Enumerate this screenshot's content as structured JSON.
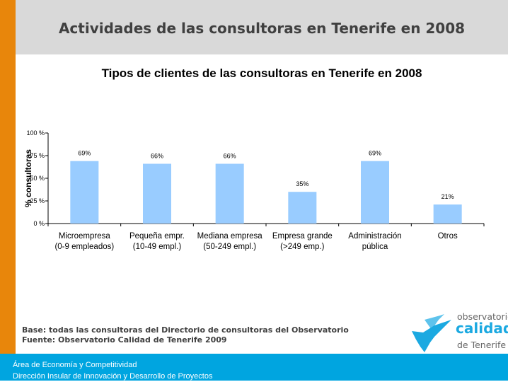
{
  "header": {
    "title": "Actividades de las consultoras en Tenerife en 2008"
  },
  "chart_data": {
    "type": "bar",
    "title": "Tipos de clientes de las consultoras en Tenerife en 2008",
    "ylabel": "% consultoras",
    "xlabel": "",
    "ylim": [
      0,
      100
    ],
    "yticks": [
      "0 %",
      "25 %",
      "50 %",
      "75 %",
      "100 %"
    ],
    "categories": [
      [
        "Microempresa",
        "(0-9 empleados)"
      ],
      [
        "Pequeña empr.",
        "(10-49 empl.)"
      ],
      [
        "Mediana empresa",
        "(50-249 empl.)"
      ],
      [
        "Empresa grande",
        "(>249 emp.)"
      ],
      [
        "Administración",
        "pública"
      ],
      [
        "Otros",
        ""
      ]
    ],
    "values": [
      69,
      66,
      66,
      35,
      69,
      21
    ],
    "data_labels": [
      "69%",
      "66%",
      "66%",
      "35%",
      "69%",
      "21%"
    ],
    "bar_color": "#99ccff",
    "grid": false
  },
  "source": {
    "base": "Base: todas las consultoras del Directorio de consultoras del Observatorio",
    "fuente": "Fuente: Observatorio Calidad de Tenerife 2009"
  },
  "logo": {
    "line1": "observatorio",
    "line2": "calidad",
    "line3": "de Tenerife"
  },
  "footer": {
    "line1": "Área de Economía y Competitividad",
    "line2": "Dirección Insular de Innovación y Desarrollo de Proyectos"
  },
  "colors": {
    "orange": "#e8860b",
    "blue": "#00a5e0",
    "header_gray": "#d9d9d9"
  }
}
